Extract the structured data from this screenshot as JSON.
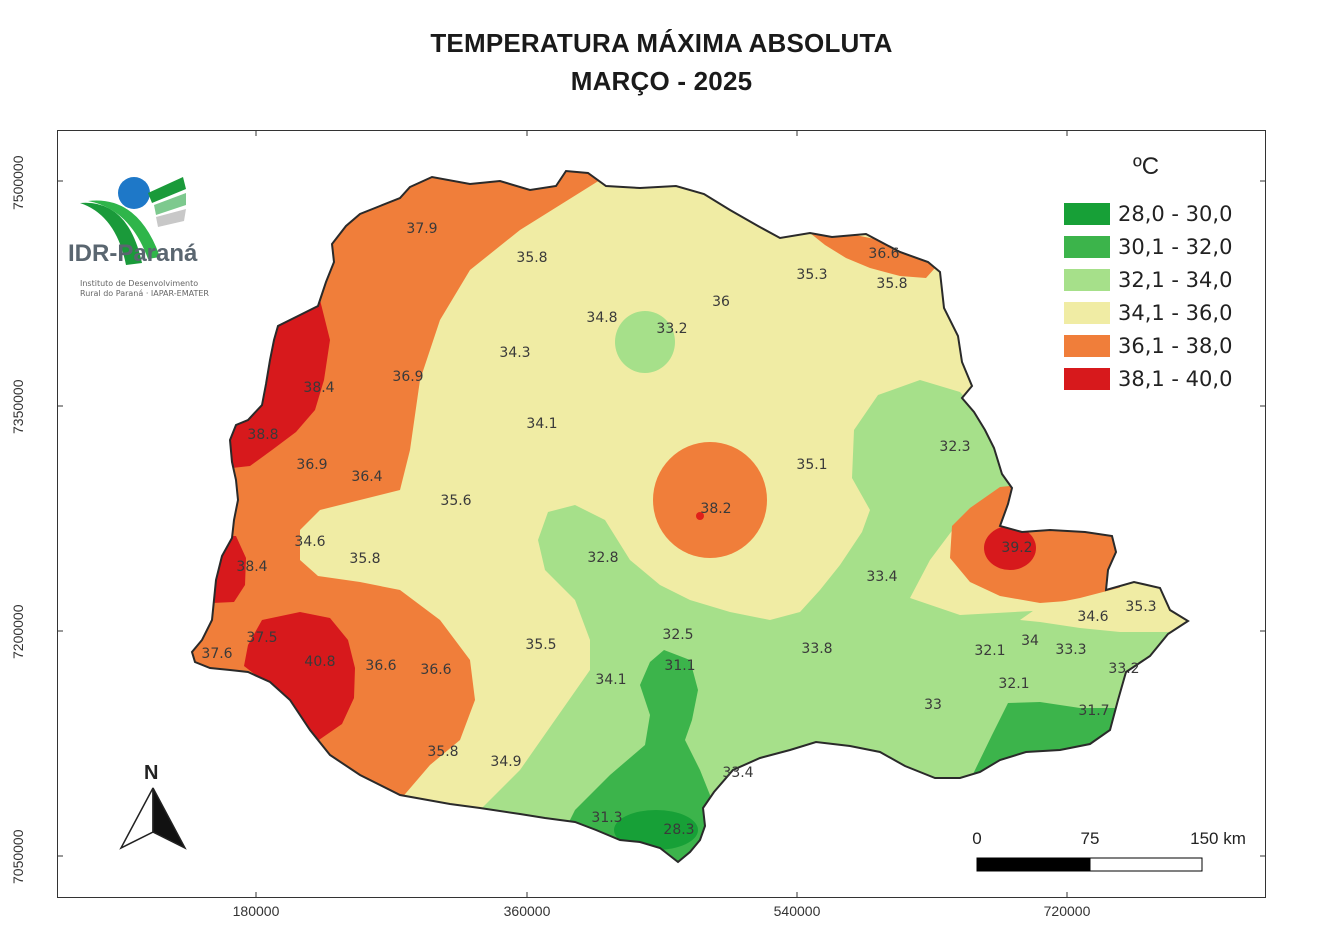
{
  "title": {
    "line1": "TEMPERATURA MÁXIMA ABSOLUTA",
    "line2": "MARÇO - 2025"
  },
  "axes": {
    "y_ticks": [
      "7500000",
      "7350000",
      "7200000",
      "7050000"
    ],
    "x_ticks": [
      "180000",
      "360000",
      "540000",
      "720000"
    ]
  },
  "legend": {
    "unit": "ºC",
    "classes": [
      {
        "label": "28,0 - 30,0",
        "color": "#17a037"
      },
      {
        "label": "30,1 - 32,0",
        "color": "#3cb44b"
      },
      {
        "label": "32,1 - 34,0",
        "color": "#a6e08a"
      },
      {
        "label": "34,1 - 36,0",
        "color": "#f0eca4"
      },
      {
        "label": "36,1 - 38,0",
        "color": "#f07e3a"
      },
      {
        "label": "38,1 - 40,0",
        "color": "#d7191c"
      }
    ]
  },
  "logo": {
    "name": "IDR-Paraná",
    "subtitle_line1": "Instituto de Desenvolvimento",
    "subtitle_line2": "Rural do Paraná · IAPAR-EMATER"
  },
  "north_arrow": {
    "letter": "N"
  },
  "scale_bar": {
    "labels": [
      "0",
      "75",
      "150 km"
    ]
  },
  "station_values": [
    "37.9",
    "35.8",
    "36.6",
    "35.3",
    "35.8",
    "36",
    "34.8",
    "33.2",
    "34.3",
    "38.4",
    "36.9",
    "34.1",
    "38.8",
    "32.3",
    "36.9",
    "36.4",
    "35.1",
    "35.6",
    "38.2",
    "34.6",
    "39.2",
    "32.8",
    "35.8",
    "38.4",
    "33.4",
    "34.6",
    "35.3",
    "32.5",
    "37.5",
    "34",
    "35.5",
    "33.8",
    "32.1",
    "33.3",
    "40.8",
    "36.6",
    "36.6",
    "31.1",
    "37.6",
    "33.2",
    "34.1",
    "32.1",
    "33",
    "31.7",
    "35.8",
    "34.9",
    "33.4",
    "31.3",
    "28.3"
  ]
}
